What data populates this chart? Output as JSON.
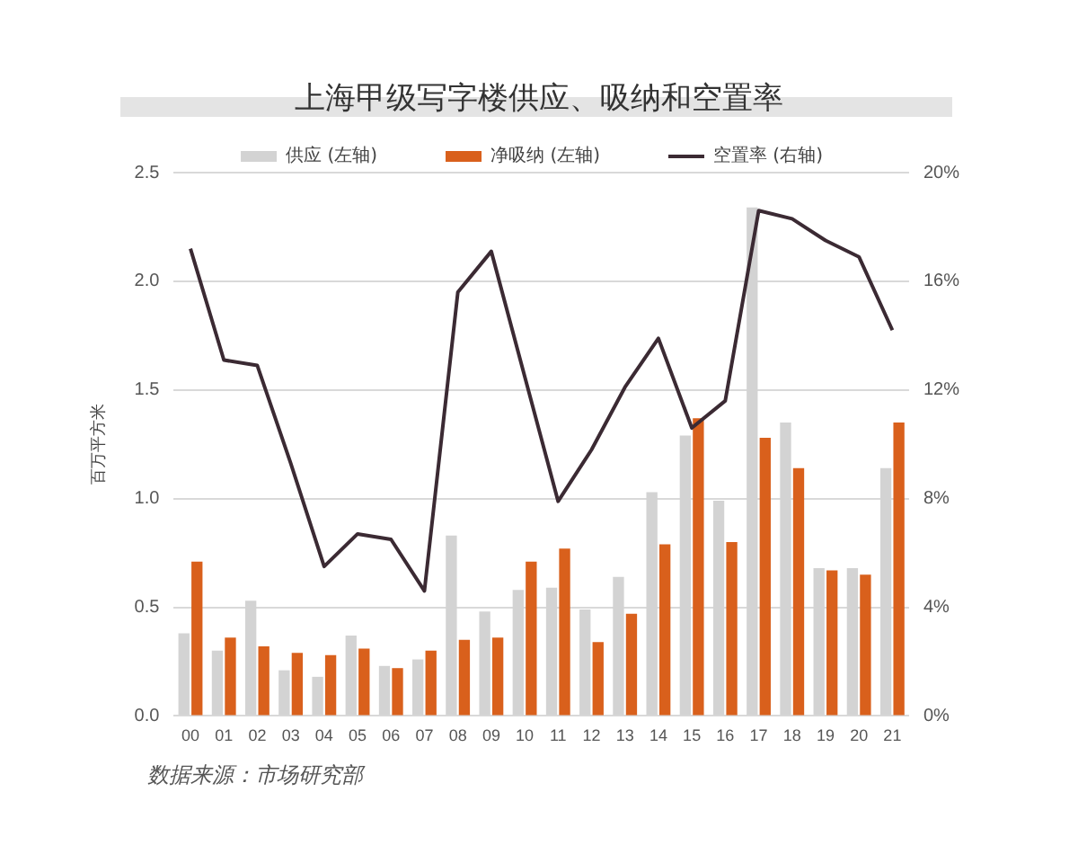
{
  "chart_data": {
    "type": "bar",
    "title": "上海甲级写字楼供应、吸纳和空置率",
    "ylabel": "百万平方米",
    "categories": [
      "00",
      "01",
      "02",
      "03",
      "04",
      "05",
      "06",
      "07",
      "08",
      "09",
      "10",
      "11",
      "12",
      "13",
      "14",
      "15",
      "16",
      "17",
      "18",
      "19",
      "20",
      "21"
    ],
    "series": [
      {
        "name": "供应 (左轴)",
        "type": "bar",
        "color": "#d3d3d3",
        "values": [
          0.38,
          0.3,
          0.53,
          0.21,
          0.18,
          0.37,
          0.23,
          0.26,
          0.83,
          0.48,
          0.58,
          0.59,
          0.49,
          0.64,
          1.03,
          1.29,
          0.99,
          2.34,
          1.35,
          0.68,
          0.68,
          1.14
        ]
      },
      {
        "name": "净吸纳 (左轴)",
        "type": "bar",
        "color": "#d9601c",
        "values": [
          0.71,
          0.36,
          0.32,
          0.29,
          0.28,
          0.31,
          0.22,
          0.3,
          0.35,
          0.36,
          0.71,
          0.77,
          0.34,
          0.47,
          0.79,
          1.37,
          0.8,
          1.28,
          1.14,
          0.67,
          0.65,
          1.35
        ]
      },
      {
        "name": "空置率 (右轴)",
        "type": "line",
        "axis": "y2",
        "color": "#3b2a33",
        "values": [
          17.2,
          13.1,
          12.9,
          9.3,
          5.5,
          6.7,
          6.5,
          4.6,
          15.6,
          17.1,
          12.5,
          7.9,
          9.8,
          12.1,
          13.9,
          10.6,
          11.6,
          18.6,
          18.3,
          17.5,
          16.9,
          14.2
        ]
      }
    ],
    "ylim": [
      0,
      2.5
    ],
    "yticks": [
      {
        "value": 0,
        "label": "0.0"
      },
      0.5,
      {
        "value": 1,
        "label": "1.0"
      },
      1.5,
      {
        "value": 2,
        "label": "2.0"
      },
      2.5
    ],
    "y2lim": [
      0,
      20
    ],
    "y2ticks": [
      {
        "value": 0,
        "label": "0%"
      },
      {
        "value": 4,
        "label": "4%"
      },
      {
        "value": 8,
        "label": "8%"
      },
      {
        "value": 12,
        "label": "12%"
      },
      {
        "value": 16,
        "label": "16%"
      },
      {
        "value": 20,
        "label": "20%"
      }
    ],
    "grid": "y",
    "legend": "top",
    "marker": "none",
    "annotations": [
      "数据来源：市场研究部"
    ]
  }
}
